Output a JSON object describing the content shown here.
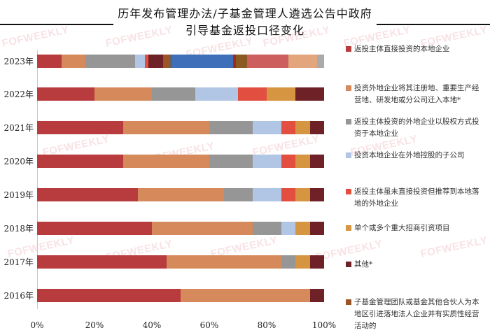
{
  "header": {
    "title_line1": "历年发布管理办法/子基金管理人遴选公告中政府",
    "title_line2": "引导基金返投口径变化"
  },
  "watermark": "FOFWEEKLY",
  "legend": [
    {
      "label": "返投主体直接投资的本地企业",
      "color": "#b83b3d"
    },
    {
      "label": "投资外地企业将其注册地、重要生产经营地、研发地或分公司迁入本地*",
      "color": "#d68a5c"
    },
    {
      "label": "返投主体投资的外地企业以股权方式投资于本地企业",
      "color": "#969696"
    },
    {
      "label": "投资本地企业在外地控股的子公司",
      "color": "#b1c6e4"
    },
    {
      "label": "返投主体虽未直接投资但推荐到本地落地的外地企业",
      "color": "#e24e3f"
    },
    {
      "label": "单个或多个重大招商引资项目",
      "color": "#d69540"
    },
    {
      "label": "其他*",
      "color": "#6e2126"
    },
    {
      "label": "子基金管理团队或基金其他合伙人为本地区引进落地法人企业并有实质性经营活动的",
      "color": "#9c5325"
    }
  ],
  "chart_data": {
    "type": "bar",
    "orientation": "horizontal",
    "stacked": "percent",
    "title": "历年发布管理办法/子基金管理人遴选公告中政府引导基金返投口径变化",
    "xlabel": "",
    "ylabel": "",
    "xlim": [
      0,
      100
    ],
    "x_ticks": [
      "0%",
      "20%",
      "40%",
      "60%",
      "80%",
      "100%"
    ],
    "categories": [
      "2023年",
      "2022年",
      "2021年",
      "2020年",
      "2019年",
      "2018年",
      "2017年",
      "2016年"
    ],
    "legend_position": "right",
    "grid": false,
    "series": [
      {
        "name": "返投主体直接投资的本地企业",
        "values": [
          8.5,
          20,
          30,
          30,
          35,
          40,
          45,
          50
        ]
      },
      {
        "name": "投资外地企业将其注册地、重要生产经营地、研发地或分公司迁入本地*",
        "values": [
          8.3,
          20,
          30,
          30,
          30,
          35,
          40,
          45
        ]
      },
      {
        "name": "返投主体投资的外地企业以股权方式投资于本地企业",
        "values": [
          17.3,
          15,
          15,
          15,
          10,
          10,
          5,
          0
        ]
      },
      {
        "name": "投资本地企业在外地控股的子公司",
        "values": [
          3.4,
          15,
          10,
          10,
          10,
          5,
          0,
          0
        ]
      },
      {
        "name": "返投主体虽未直接投资但推荐到本地落地的外地企业",
        "values": [
          1.2,
          10,
          5,
          5,
          5,
          0,
          0,
          0
        ]
      },
      {
        "name": "单个或多个重大招商引资项目",
        "values": [
          0,
          10,
          5,
          5,
          5,
          5,
          5,
          0
        ]
      },
      {
        "name": "其他*",
        "values": [
          5.1,
          10,
          5,
          5,
          5,
          5,
          5,
          5
        ]
      },
      {
        "name": "子基金管理团队或基金其他合伙人为本地区引进落地法人企业并有实质性经营活动的",
        "values": [
          2.4,
          0,
          0,
          0,
          0,
          0,
          0,
          0
        ]
      }
    ],
    "bars": [
      {
        "label": "2023年",
        "segments": [
          {
            "value": 8.5,
            "color": "#b83b3d"
          },
          {
            "value": 8.3,
            "color": "#d68a5c"
          },
          {
            "value": 17.3,
            "color": "#969696"
          },
          {
            "value": 3.4,
            "color": "#b1c6e4"
          },
          {
            "value": 1.2,
            "color": "#e24e3f"
          },
          {
            "value": 5.1,
            "color": "#6e2126"
          },
          {
            "value": 2.4,
            "color": "#9c5325"
          },
          {
            "value": 1.0,
            "color": "#5f6266"
          },
          {
            "value": 21.0,
            "color": "#3f6fb8"
          },
          {
            "value": 1.2,
            "color": "#a02a1c"
          },
          {
            "value": 3.7,
            "color": "#8a5a22"
          },
          {
            "value": 14.6,
            "color": "#cd5f5e"
          },
          {
            "value": 9.8,
            "color": "#e2a57c"
          },
          {
            "value": 2.5,
            "color": "#aaaaaa"
          }
        ]
      },
      {
        "label": "2022年",
        "segments": [
          {
            "value": 20,
            "color": "#b83b3d"
          },
          {
            "value": 20,
            "color": "#d68a5c"
          },
          {
            "value": 15,
            "color": "#969696"
          },
          {
            "value": 15,
            "color": "#b1c6e4"
          },
          {
            "value": 10,
            "color": "#e24e3f"
          },
          {
            "value": 10,
            "color": "#d69540"
          },
          {
            "value": 10,
            "color": "#6e2126"
          }
        ]
      },
      {
        "label": "2021年",
        "segments": [
          {
            "value": 30,
            "color": "#b83b3d"
          },
          {
            "value": 30,
            "color": "#d68a5c"
          },
          {
            "value": 15,
            "color": "#969696"
          },
          {
            "value": 10,
            "color": "#b1c6e4"
          },
          {
            "value": 5,
            "color": "#e24e3f"
          },
          {
            "value": 5,
            "color": "#d69540"
          },
          {
            "value": 5,
            "color": "#6e2126"
          }
        ]
      },
      {
        "label": "2020年",
        "segments": [
          {
            "value": 30,
            "color": "#b83b3d"
          },
          {
            "value": 30,
            "color": "#d68a5c"
          },
          {
            "value": 15,
            "color": "#969696"
          },
          {
            "value": 10,
            "color": "#b1c6e4"
          },
          {
            "value": 5,
            "color": "#e24e3f"
          },
          {
            "value": 5,
            "color": "#d69540"
          },
          {
            "value": 5,
            "color": "#6e2126"
          }
        ]
      },
      {
        "label": "2019年",
        "segments": [
          {
            "value": 35,
            "color": "#b83b3d"
          },
          {
            "value": 30,
            "color": "#d68a5c"
          },
          {
            "value": 10,
            "color": "#969696"
          },
          {
            "value": 10,
            "color": "#b1c6e4"
          },
          {
            "value": 5,
            "color": "#e24e3f"
          },
          {
            "value": 5,
            "color": "#d69540"
          },
          {
            "value": 5,
            "color": "#6e2126"
          }
        ]
      },
      {
        "label": "2018年",
        "segments": [
          {
            "value": 40,
            "color": "#b83b3d"
          },
          {
            "value": 35,
            "color": "#d68a5c"
          },
          {
            "value": 10,
            "color": "#969696"
          },
          {
            "value": 5,
            "color": "#b1c6e4"
          },
          {
            "value": 5,
            "color": "#d69540"
          },
          {
            "value": 5,
            "color": "#6e2126"
          }
        ]
      },
      {
        "label": "2017年",
        "segments": [
          {
            "value": 45,
            "color": "#b83b3d"
          },
          {
            "value": 40,
            "color": "#d68a5c"
          },
          {
            "value": 5,
            "color": "#969696"
          },
          {
            "value": 5,
            "color": "#d69540"
          },
          {
            "value": 5,
            "color": "#6e2126"
          }
        ]
      },
      {
        "label": "2016年",
        "segments": [
          {
            "value": 50,
            "color": "#b83b3d"
          },
          {
            "value": 45,
            "color": "#d68a5c"
          },
          {
            "value": 5,
            "color": "#6e2126"
          }
        ]
      }
    ]
  }
}
